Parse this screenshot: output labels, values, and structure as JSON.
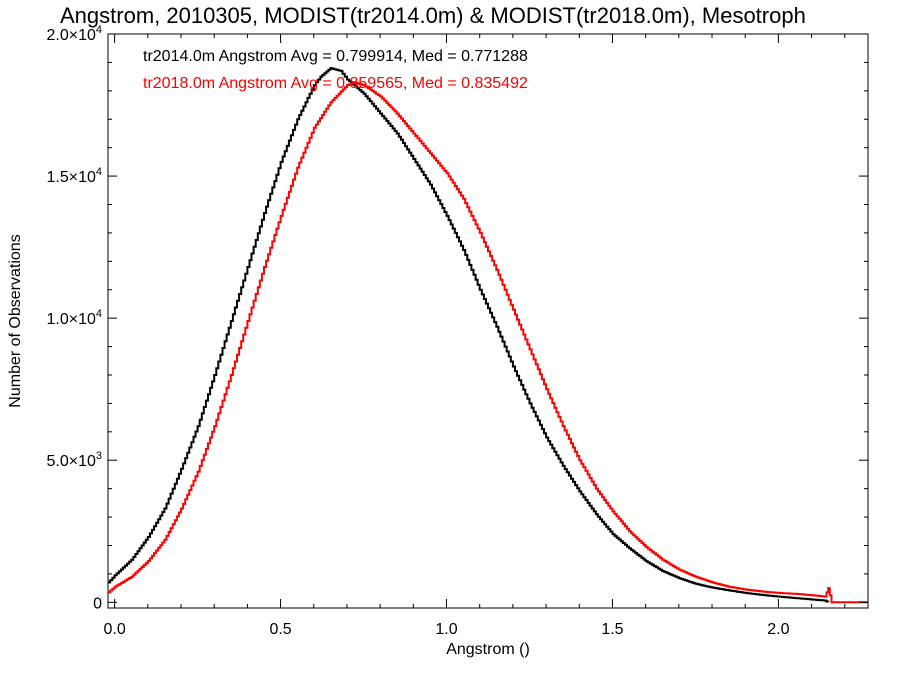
{
  "chart_data": {
    "type": "line",
    "title": "Angstrom, 2010305, MODIST(tr2014.0m) & MODIST(tr2018.0m), Mesotroph",
    "xlabel": "Angstrom ()",
    "ylabel": "Number of Observations",
    "xlim": [
      -0.02,
      2.27
    ],
    "ylim": [
      -200,
      20000
    ],
    "x_ticks": [
      {
        "value": 0.0,
        "label": "0.0"
      },
      {
        "value": 0.5,
        "label": "0.5"
      },
      {
        "value": 1.0,
        "label": "1.0"
      },
      {
        "value": 1.5,
        "label": "1.5"
      },
      {
        "value": 2.0,
        "label": "2.0"
      }
    ],
    "y_ticks": [
      {
        "value": 0,
        "mantissa": "0",
        "exponent": ""
      },
      {
        "value": 5000,
        "mantissa": "5.0×10",
        "exponent": "3"
      },
      {
        "value": 10000,
        "mantissa": "1.0×10",
        "exponent": "4"
      },
      {
        "value": 15000,
        "mantissa": "1.5×10",
        "exponent": "4"
      },
      {
        "value": 20000,
        "mantissa": "2.0×10",
        "exponent": "4"
      }
    ],
    "grid": false,
    "step": "histogram",
    "series": [
      {
        "name": "tr2014.0m",
        "color": "#000000",
        "annotation": "tr2014.0m Angstrom Avg = 0.799914, Med = 0.771288",
        "x": [
          -0.02,
          0.0,
          0.05,
          0.1,
          0.15,
          0.2,
          0.25,
          0.3,
          0.35,
          0.4,
          0.45,
          0.5,
          0.55,
          0.6,
          0.62,
          0.65,
          0.68,
          0.7,
          0.75,
          0.8,
          0.85,
          0.9,
          0.95,
          1.0,
          1.05,
          1.1,
          1.15,
          1.2,
          1.25,
          1.3,
          1.35,
          1.4,
          1.45,
          1.5,
          1.55,
          1.6,
          1.65,
          1.7,
          1.75,
          1.8,
          1.85,
          1.9,
          1.95,
          2.0,
          2.05,
          2.1,
          2.14,
          2.15
        ],
        "y": [
          700,
          950,
          1500,
          2300,
          3300,
          4700,
          6200,
          8000,
          9900,
          11800,
          13700,
          15500,
          17000,
          18200,
          18500,
          18800,
          18700,
          18400,
          17900,
          17200,
          16500,
          15600,
          14700,
          13600,
          12400,
          11000,
          9700,
          8300,
          7000,
          5800,
          4800,
          3900,
          3100,
          2400,
          1900,
          1450,
          1100,
          850,
          650,
          520,
          420,
          330,
          260,
          200,
          150,
          100,
          60,
          0
        ]
      },
      {
        "name": "tr2018.0m",
        "color": "#ff0000",
        "annotation": "tr2018.0m Angstrom Avg = 0.859565, Med = 0.835492",
        "x": [
          -0.02,
          0.0,
          0.05,
          0.1,
          0.15,
          0.2,
          0.25,
          0.3,
          0.35,
          0.4,
          0.45,
          0.5,
          0.55,
          0.6,
          0.65,
          0.7,
          0.72,
          0.75,
          0.8,
          0.85,
          0.9,
          0.95,
          1.0,
          1.05,
          1.1,
          1.15,
          1.2,
          1.25,
          1.3,
          1.35,
          1.4,
          1.45,
          1.5,
          1.55,
          1.6,
          1.65,
          1.7,
          1.75,
          1.8,
          1.85,
          1.9,
          1.95,
          2.0,
          2.05,
          2.1,
          2.14,
          2.15,
          2.16,
          2.2,
          2.27
        ],
        "y": [
          350,
          550,
          900,
          1450,
          2200,
          3300,
          4600,
          6200,
          8000,
          9900,
          11800,
          13600,
          15300,
          16700,
          17600,
          18200,
          18300,
          18200,
          17800,
          17200,
          16500,
          15800,
          15100,
          14200,
          13000,
          11700,
          10300,
          8900,
          7500,
          6200,
          5000,
          4000,
          3200,
          2500,
          1950,
          1500,
          1150,
          900,
          700,
          550,
          450,
          380,
          330,
          300,
          250,
          200,
          500,
          0,
          0,
          0
        ]
      }
    ]
  }
}
